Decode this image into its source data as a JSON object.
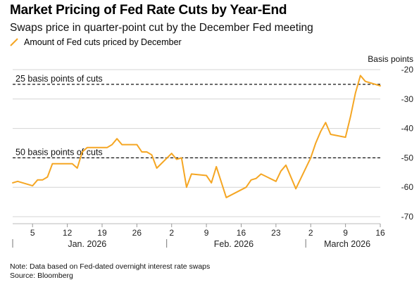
{
  "title": "Market Pricing of Fed Rate Cuts by Year-End",
  "subtitle": "Swaps price in quarter-point cut by the December Fed meeting",
  "legend": {
    "label": "Amount of Fed cuts priced by December"
  },
  "footer": {
    "note": "Note: Data based on Fed-dated overnight interest rate swaps",
    "source": "Source: Bloomberg"
  },
  "colors": {
    "series": "#f5a623",
    "grid": "#d4d4d4",
    "reference": "#111111",
    "text": "#222222"
  },
  "chart_data": {
    "type": "line",
    "title": "Market Pricing of Fed Rate Cuts by Year-End",
    "subtitle": "Swaps price in quarter-point cut by the December Fed meeting",
    "ylabel": "Basis points",
    "ylim": [
      -70,
      -20
    ],
    "yticks": [
      -20,
      -30,
      -40,
      -50,
      -60,
      -70
    ],
    "ytick_labels": [
      "-20",
      "-30",
      "-40",
      "-50",
      "-60",
      "-70"
    ],
    "y_axis_position": "right",
    "y_reversed": true,
    "grid": true,
    "legend_position": "top-left",
    "x_ticks": [
      {
        "date": "2026-01-05",
        "label": "5"
      },
      {
        "date": "2026-01-12",
        "label": "12"
      },
      {
        "date": "2026-01-19",
        "label": "19"
      },
      {
        "date": "2026-01-26",
        "label": "26"
      },
      {
        "date": "2026-02-02",
        "label": "2"
      },
      {
        "date": "2026-02-09",
        "label": "9"
      },
      {
        "date": "2026-02-16",
        "label": "16"
      },
      {
        "date": "2026-02-23",
        "label": "23"
      },
      {
        "date": "2026-03-02",
        "label": "2"
      },
      {
        "date": "2026-03-09",
        "label": "9"
      },
      {
        "date": "2026-03-16",
        "label": "16"
      }
    ],
    "months": [
      {
        "label": "Jan. 2026",
        "start": "2026-01-01",
        "end": "2026-01-31"
      },
      {
        "label": "Feb. 2026",
        "start": "2026-02-01",
        "end": "2026-02-28"
      },
      {
        "label": "March 2026",
        "start": "2026-03-01",
        "end": "2026-03-16"
      }
    ],
    "reference_lines": [
      {
        "value": -25,
        "label": "25 basis points of cuts"
      },
      {
        "value": -50,
        "label": "50 basis points of cuts"
      }
    ],
    "series": [
      {
        "name": "Amount of Fed cuts priced by December",
        "points": [
          [
            "2026-01-01",
            -58.5
          ],
          [
            "2026-01-02",
            -58.0
          ],
          [
            "2026-01-05",
            -59.5
          ],
          [
            "2026-01-06",
            -57.5
          ],
          [
            "2026-01-07",
            -57.5
          ],
          [
            "2026-01-08",
            -56.5
          ],
          [
            "2026-01-09",
            -52.0
          ],
          [
            "2026-01-12",
            -52.0
          ],
          [
            "2026-01-13",
            -52.0
          ],
          [
            "2026-01-14",
            -53.5
          ],
          [
            "2026-01-15",
            -48.0
          ],
          [
            "2026-01-16",
            -46.5
          ],
          [
            "2026-01-19",
            -46.5
          ],
          [
            "2026-01-20",
            -46.5
          ],
          [
            "2026-01-21",
            -45.5
          ],
          [
            "2026-01-22",
            -43.5
          ],
          [
            "2026-01-23",
            -45.5
          ],
          [
            "2026-01-26",
            -45.5
          ],
          [
            "2026-01-27",
            -48.0
          ],
          [
            "2026-01-28",
            -48.0
          ],
          [
            "2026-01-29",
            -49.0
          ],
          [
            "2026-01-30",
            -53.5
          ],
          [
            "2026-02-02",
            -48.5
          ],
          [
            "2026-02-03",
            -50.5
          ],
          [
            "2026-02-04",
            -50.0
          ],
          [
            "2026-02-05",
            -60.0
          ],
          [
            "2026-02-06",
            -55.5
          ],
          [
            "2026-02-09",
            -56.0
          ],
          [
            "2026-02-10",
            -58.5
          ],
          [
            "2026-02-11",
            -53.0
          ],
          [
            "2026-02-13",
            -63.5
          ],
          [
            "2026-02-17",
            -60.0
          ],
          [
            "2026-02-18",
            -57.5
          ],
          [
            "2026-02-19",
            -57.0
          ],
          [
            "2026-02-20",
            -55.5
          ],
          [
            "2026-02-23",
            -58.0
          ],
          [
            "2026-02-24",
            -54.5
          ],
          [
            "2026-02-25",
            -52.5
          ],
          [
            "2026-02-27",
            -60.5
          ],
          [
            "2026-03-02",
            -50.0
          ],
          [
            "2026-03-03",
            -45.0
          ],
          [
            "2026-03-04",
            -41.0
          ],
          [
            "2026-03-05",
            -38.0
          ],
          [
            "2026-03-06",
            -42.0
          ],
          [
            "2026-03-09",
            -43.0
          ],
          [
            "2026-03-10",
            -36.0
          ],
          [
            "2026-03-11",
            -28.0
          ],
          [
            "2026-03-12",
            -22.0
          ],
          [
            "2026-03-13",
            -24.0
          ],
          [
            "2026-03-16",
            -25.5
          ]
        ]
      }
    ]
  }
}
